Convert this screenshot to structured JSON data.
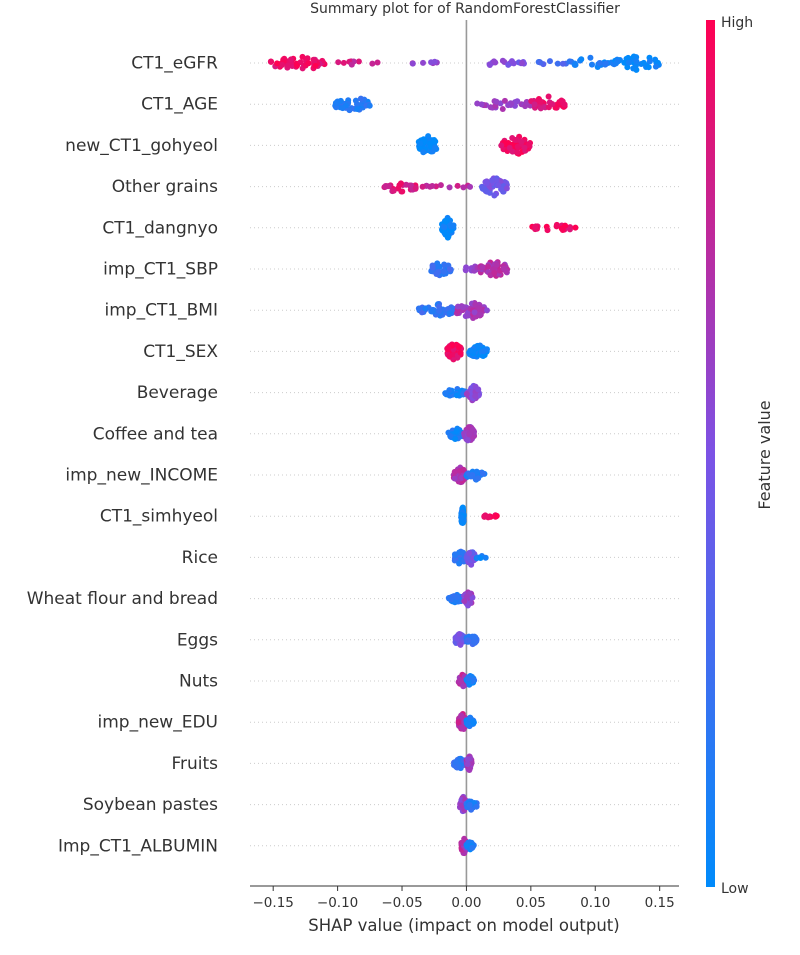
{
  "chart_data": {
    "type": "scatter",
    "subtype": "beeswarm",
    "title": "Summary plot for of RandomForestClassifier",
    "xlabel": "SHAP value (impact on model output)",
    "xlim": [
      -0.168,
      0.165
    ],
    "xticks": [
      -0.15,
      -0.1,
      -0.05,
      0.0,
      0.05,
      0.1,
      0.15
    ],
    "xtick_labels": [
      "−0.15",
      "−0.10",
      "−0.05",
      "0.00",
      "0.05",
      "0.10",
      "0.15"
    ],
    "colorbar": {
      "label": "Feature value",
      "high_label": "High",
      "low_label": "Low",
      "low_color": "#008bfb",
      "high_color": "#ff0052"
    },
    "colors": {
      "low": "#008bfb",
      "mid": "#7c52e5",
      "high": "#ff0052",
      "zero_line": "#999999",
      "grid_dots": "#cccccc"
    },
    "features": [
      {
        "name": "CT1_eGFR",
        "groups": [
          {
            "range": [
              -0.152,
              -0.11
            ],
            "n": 50,
            "spread": 1.0,
            "feature_value": 0.92
          },
          {
            "range": [
              -0.105,
              -0.06
            ],
            "n": 9,
            "spread": 0.25,
            "feature_value": 0.8
          },
          {
            "range": [
              -0.05,
              -0.017
            ],
            "n": 7,
            "spread": 0.25,
            "feature_value": 0.6
          },
          {
            "range": [
              0.007,
              0.045
            ],
            "n": 16,
            "spread": 0.35,
            "feature_value": 0.5
          },
          {
            "range": [
              0.05,
              0.08
            ],
            "n": 8,
            "spread": 0.25,
            "feature_value": 0.3
          },
          {
            "range": [
              0.08,
              0.115
            ],
            "n": 22,
            "spread": 0.7,
            "feature_value": 0.1
          },
          {
            "range": [
              0.115,
              0.15
            ],
            "n": 35,
            "spread": 1.0,
            "feature_value": 0.03
          }
        ]
      },
      {
        "name": "CT1_AGE",
        "groups": [
          {
            "range": [
              -0.102,
              -0.075
            ],
            "n": 40,
            "spread": 1.0,
            "feature_value": 0.15
          },
          {
            "range": [
              0.008,
              0.05
            ],
            "n": 28,
            "spread": 0.6,
            "feature_value": 0.6
          },
          {
            "range": [
              0.05,
              0.078
            ],
            "n": 32,
            "spread": 1.0,
            "feature_value": 0.9
          }
        ]
      },
      {
        "name": "new_CT1_gohyeol",
        "groups": [
          {
            "range": [
              -0.037,
              -0.023
            ],
            "n": 55,
            "spread": 1.2,
            "feature_value": 0.03
          },
          {
            "range": [
              0.027,
              0.05
            ],
            "n": 55,
            "spread": 1.2,
            "feature_value": 0.95
          }
        ]
      },
      {
        "name": "Other grains",
        "groups": [
          {
            "range": [
              -0.065,
              -0.038
            ],
            "n": 26,
            "spread": 0.8,
            "feature_value": 0.85
          },
          {
            "range": [
              -0.035,
              0.012
            ],
            "n": 12,
            "spread": 0.25,
            "feature_value": 0.75
          },
          {
            "range": [
              0.012,
              0.032
            ],
            "n": 55,
            "spread": 1.1,
            "feature_value": 0.45
          }
        ]
      },
      {
        "name": "CT1_dangnyo",
        "groups": [
          {
            "range": [
              -0.019,
              -0.01
            ],
            "n": 60,
            "spread": 1.2,
            "feature_value": 0.03
          },
          {
            "range": [
              0.049,
              0.085
            ],
            "n": 22,
            "spread": 0.4,
            "feature_value": 0.95
          }
        ]
      },
      {
        "name": "imp_CT1_SBP",
        "groups": [
          {
            "range": [
              -0.028,
              -0.012
            ],
            "n": 32,
            "spread": 0.85,
            "feature_value": 0.2
          },
          {
            "range": [
              -0.002,
              0.01
            ],
            "n": 12,
            "spread": 0.45,
            "feature_value": 0.6
          },
          {
            "range": [
              0.01,
              0.033
            ],
            "n": 42,
            "spread": 1.0,
            "feature_value": 0.7
          }
        ]
      },
      {
        "name": "imp_CT1_BMI",
        "groups": [
          {
            "range": [
              -0.037,
              -0.008
            ],
            "n": 45,
            "spread": 0.8,
            "feature_value": 0.2
          },
          {
            "range": [
              -0.008,
              0.016
            ],
            "n": 50,
            "spread": 1.0,
            "feature_value": 0.65
          }
        ]
      },
      {
        "name": "CT1_SEX",
        "groups": [
          {
            "range": [
              -0.015,
              -0.004
            ],
            "n": 50,
            "spread": 1.1,
            "feature_value": 0.95
          },
          {
            "range": [
              0.002,
              0.016
            ],
            "n": 45,
            "spread": 0.9,
            "feature_value": 0.03
          }
        ]
      },
      {
        "name": "Beverage",
        "groups": [
          {
            "range": [
              -0.018,
              0.0
            ],
            "n": 30,
            "spread": 0.5,
            "feature_value": 0.1
          },
          {
            "range": [
              0.0,
              0.01
            ],
            "n": 45,
            "spread": 1.0,
            "feature_value": 0.55
          }
        ]
      },
      {
        "name": "Coffee and tea",
        "groups": [
          {
            "range": [
              -0.014,
              -0.002
            ],
            "n": 30,
            "spread": 0.7,
            "feature_value": 0.1
          },
          {
            "range": [
              -0.002,
              0.006
            ],
            "n": 45,
            "spread": 1.0,
            "feature_value": 0.65
          }
        ]
      },
      {
        "name": "imp_new_INCOME",
        "groups": [
          {
            "range": [
              -0.01,
              0.0
            ],
            "n": 55,
            "spread": 1.0,
            "feature_value": 0.7
          },
          {
            "range": [
              0.0,
              0.014
            ],
            "n": 28,
            "spread": 0.6,
            "feature_value": 0.15
          }
        ]
      },
      {
        "name": "CT1_simhyeol",
        "groups": [
          {
            "range": [
              -0.004,
              -0.002
            ],
            "n": 60,
            "spread": 1.2,
            "feature_value": 0.03
          },
          {
            "range": [
              0.013,
              0.024
            ],
            "n": 10,
            "spread": 0.25,
            "feature_value": 0.95
          }
        ]
      },
      {
        "name": "Rice",
        "groups": [
          {
            "range": [
              -0.01,
              0.0
            ],
            "n": 40,
            "spread": 0.8,
            "feature_value": 0.2
          },
          {
            "range": [
              0.0,
              0.007
            ],
            "n": 35,
            "spread": 0.9,
            "feature_value": 0.45
          },
          {
            "range": [
              0.007,
              0.015
            ],
            "n": 5,
            "spread": 0.2,
            "feature_value": 0.05
          }
        ]
      },
      {
        "name": "Wheat flour and bread",
        "groups": [
          {
            "range": [
              -0.014,
              -0.002
            ],
            "n": 35,
            "spread": 0.5,
            "feature_value": 0.15
          },
          {
            "range": [
              -0.002,
              0.005
            ],
            "n": 35,
            "spread": 1.0,
            "feature_value": 0.6
          }
        ]
      },
      {
        "name": "Eggs",
        "groups": [
          {
            "range": [
              -0.009,
              0.0
            ],
            "n": 35,
            "spread": 0.8,
            "feature_value": 0.45
          },
          {
            "range": [
              0.0,
              0.008
            ],
            "n": 25,
            "spread": 0.6,
            "feature_value": 0.2
          }
        ]
      },
      {
        "name": "Nuts",
        "groups": [
          {
            "range": [
              -0.006,
              0.0
            ],
            "n": 40,
            "spread": 0.9,
            "feature_value": 0.7
          },
          {
            "range": [
              0.0,
              0.006
            ],
            "n": 30,
            "spread": 0.7,
            "feature_value": 0.1
          }
        ]
      },
      {
        "name": "imp_new_EDU",
        "groups": [
          {
            "range": [
              -0.006,
              0.0
            ],
            "n": 50,
            "spread": 1.1,
            "feature_value": 0.75
          },
          {
            "range": [
              0.0,
              0.006
            ],
            "n": 25,
            "spread": 0.6,
            "feature_value": 0.1
          }
        ]
      },
      {
        "name": "Fruits",
        "groups": [
          {
            "range": [
              -0.01,
              0.0
            ],
            "n": 30,
            "spread": 0.7,
            "feature_value": 0.2
          },
          {
            "range": [
              0.0,
              0.004
            ],
            "n": 35,
            "spread": 1.0,
            "feature_value": 0.65
          }
        ]
      },
      {
        "name": "Soybean pastes",
        "groups": [
          {
            "range": [
              -0.005,
              0.0
            ],
            "n": 40,
            "spread": 1.0,
            "feature_value": 0.6
          },
          {
            "range": [
              0.0,
              0.008
            ],
            "n": 30,
            "spread": 0.7,
            "feature_value": 0.15
          }
        ]
      },
      {
        "name": "Imp_CT1_ALBUMIN",
        "groups": [
          {
            "range": [
              -0.004,
              0.0
            ],
            "n": 40,
            "spread": 1.0,
            "feature_value": 0.7
          },
          {
            "range": [
              0.0,
              0.006
            ],
            "n": 25,
            "spread": 0.6,
            "feature_value": 0.1
          }
        ]
      }
    ]
  }
}
